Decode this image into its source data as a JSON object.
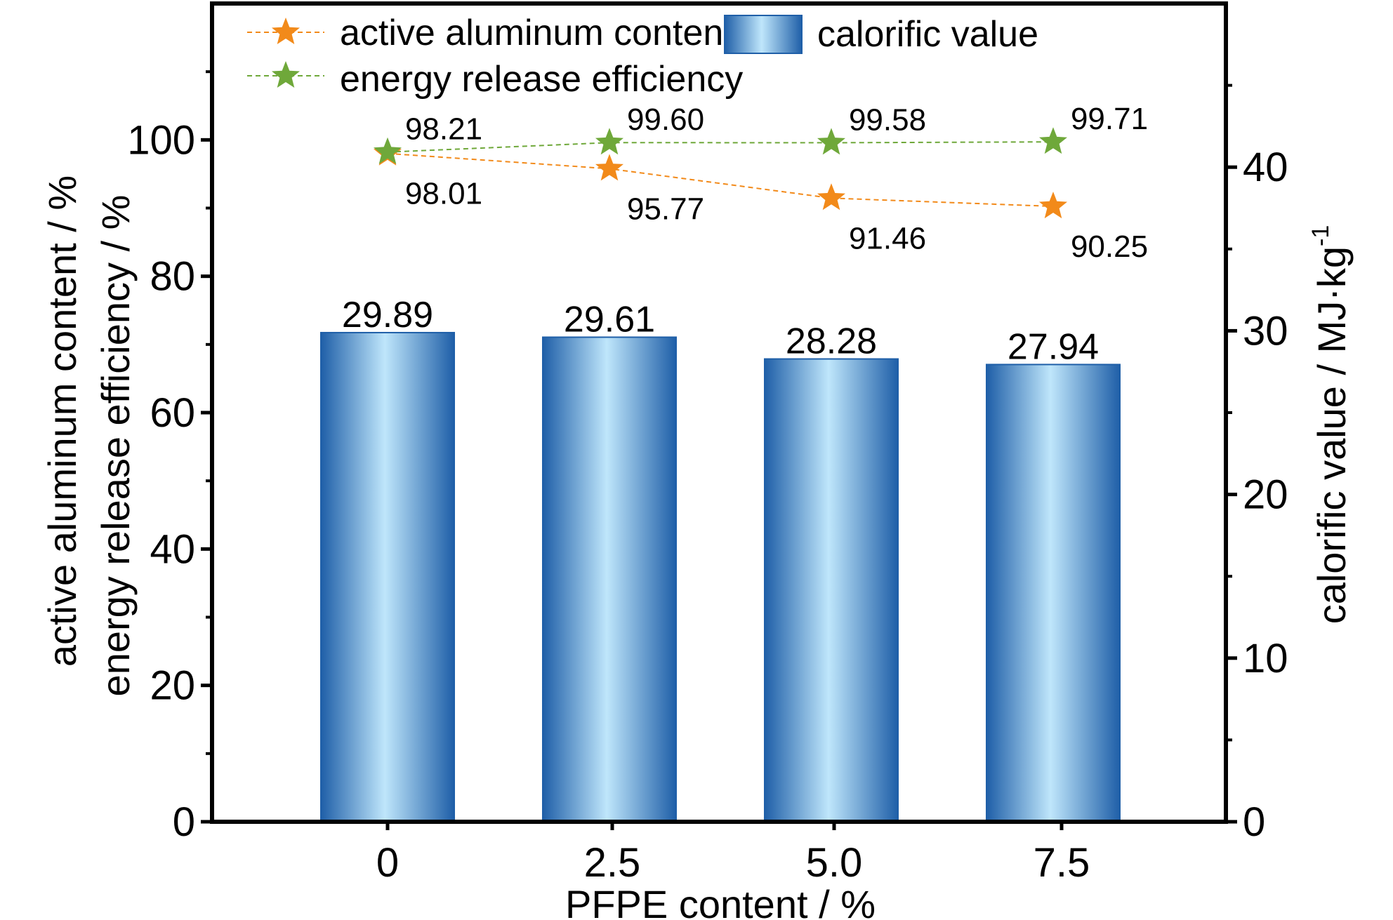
{
  "chart_data": {
    "type": "bar",
    "categories": [
      "0",
      "2.5",
      "5.0",
      "7.5"
    ],
    "xlabel": "PFPE content / %",
    "ylabel_left": [
      "active aluminum content / %",
      "energy release efficiency / %"
    ],
    "ylabel_right": "calorific value / MJ·kg",
    "ylabel_right_superscript": "-1",
    "ylim_left": [
      0,
      120
    ],
    "yticks_left": [
      "0",
      "20",
      "40",
      "60",
      "80",
      "100"
    ],
    "ylim_right": [
      0,
      50
    ],
    "yticks_right": [
      "0",
      "10",
      "20",
      "30",
      "40"
    ],
    "grid": false,
    "legend_position": "top-left",
    "series": [
      {
        "name": "calorific value",
        "kind": "bar",
        "axis": "right",
        "values": [
          29.89,
          29.61,
          28.28,
          27.94
        ],
        "labels": [
          "29.89",
          "29.61",
          "28.28",
          "27.94"
        ],
        "color_edge": "#1f5fa8",
        "color_mid": "#bfe6fb"
      },
      {
        "name": "active aluminum content",
        "kind": "line",
        "axis": "left",
        "marker": "star",
        "values": [
          98.01,
          95.77,
          91.46,
          90.25
        ],
        "labels": [
          "98.01",
          "95.77",
          "91.46",
          "90.25"
        ],
        "color": "#f28a1a"
      },
      {
        "name": "energy release efficiency",
        "kind": "line",
        "axis": "left",
        "marker": "star",
        "values": [
          98.21,
          99.6,
          99.58,
          99.71
        ],
        "labels": [
          "98.21",
          "99.60",
          "99.58",
          "99.71"
        ],
        "color": "#6fa83a"
      }
    ]
  }
}
